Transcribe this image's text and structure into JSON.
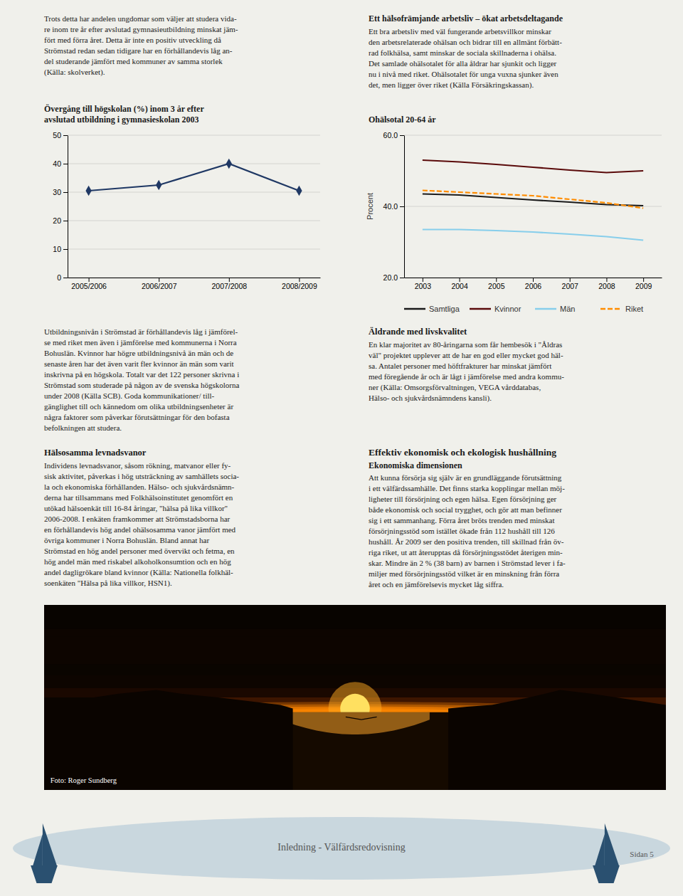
{
  "chart_data": [
    {
      "type": "line",
      "title": "Övergång till högskolan (%) inom 3 år efter\navslutad utbildning i gymnasieskolan 2003",
      "categories": [
        "2005/2006",
        "2006/2007",
        "2007/2008",
        "2008/2009"
      ],
      "values": [
        30.5,
        32.5,
        40.0,
        30.5
      ],
      "color": "#1f3864",
      "marker": "diamond",
      "ylim": [
        0,
        50
      ],
      "yticks": [
        0,
        10,
        20,
        30,
        40,
        50
      ],
      "grid": true
    },
    {
      "type": "line",
      "title": "Ohälsotal 20-64 år",
      "y_label": "Procent",
      "x": [
        2003,
        2004,
        2005,
        2006,
        2007,
        2008,
        2009
      ],
      "xlim": [
        2002.5,
        2009.5
      ],
      "xticks": [
        2003,
        2004,
        2005,
        2006,
        2007,
        2008,
        2009
      ],
      "series": [
        {
          "name": "Samtliga",
          "color": "#1a1a1a",
          "line_style": "solid",
          "values": [
            43.5,
            43.2,
            42.5,
            41.8,
            41.2,
            40.5,
            40.2
          ]
        },
        {
          "name": "Kvinnor",
          "color": "#5a0a0a",
          "line_style": "solid",
          "values": [
            53.0,
            52.5,
            51.8,
            51.0,
            50.2,
            49.5,
            50.0
          ]
        },
        {
          "name": "Män",
          "color": "#87ceeb",
          "line_style": "solid",
          "values": [
            33.5,
            33.5,
            33.2,
            32.8,
            32.2,
            31.5,
            30.5
          ]
        },
        {
          "name": "Riket",
          "color": "#ff8c00",
          "line_style": "dashed",
          "values": [
            44.5,
            44.0,
            43.5,
            43.0,
            42.0,
            41.0,
            39.5
          ]
        }
      ],
      "ylim": [
        20,
        60
      ],
      "yticks": [
        {
          "value": 20,
          "label": "20.0"
        },
        {
          "value": 40,
          "label": "40.0"
        },
        {
          "value": 60,
          "label": "60.0"
        }
      ],
      "grid": true,
      "legend": "bottom"
    }
  ],
  "text_blocks": [
    {
      "lines": [
        "Trots detta har andelen ungdomar som väljer att studera vida-",
        "re inom tre år efter avslutad gymnasieutbildning minskat jäm-",
        "fört med förra året. Detta är inte en positiv utveckling då",
        "Strömstad redan sedan tidigare har en förhållandevis låg an-",
        "del studerande jämfört med kommuner av samma storlek",
        "(Källa: skolverket)."
      ]
    },
    {
      "heading": "Ett hälsofrämjande arbetsliv – ökat arbetsdeltagande",
      "lines": [
        "Ett bra arbetsliv med väl fungerande arbetsvillkor minskar",
        "den arbetsrelaterade ohälsan och bidrar till en allmänt förbätt-",
        "rad folkhälsa, samt minskar de sociala skillnaderna i ohälsa.",
        "Det samlade ohälsotalet för alla åldrar har sjunkit och ligger",
        "nu i nivå med riket. Ohälsotalet för unga vuxna sjunker även",
        "det, men ligger över riket (Källa Försäkringskassan)."
      ]
    },
    {
      "lines": [
        "Utbildningsnivån i Strömstad är förhållandevis låg i jämförel-",
        "se med riket men även i jämförelse med kommunerna i Norra",
        "Bohuslän. Kvinnor har högre utbildningsnivå än män och de",
        "senaste åren har det även varit fler kvinnor än män som varit",
        "inskrivna på en högskola. Totalt var det 122 personer skrivna i",
        "Strömstad som studerade på någon av de svenska högskolorna",
        "under 2008 (Källa SCB). Goda kommunikationer/ till-",
        "gänglighet till och kännedom om olika utbildningsenheter är",
        "några faktorer som påverkar förutsättningar för den bofasta",
        "befolkningen att studera."
      ]
    },
    {
      "heading": "Äldrande med livskvalitet",
      "lines": [
        "En klar majoritet av 80-åringarna som får hembesök i \"Åldras",
        "väl\" projektet upplever att de har en god eller mycket god häl-",
        "sa. Antalet personer med höftfrakturer har minskat jämfört",
        "med föregående år och är lågt i jämförelse med andra kommu-",
        "ner (Källa: Omsorgsförvaltningen, VEGA vårddatabas,",
        "Hälso- och sjukvårdsnämndens kansli)."
      ]
    },
    {
      "heading": "Hälsosamma levnadsvanor",
      "lines": [
        "Individens levnadsvanor, såsom rökning, matvanor eller fy-",
        "sisk aktivitet, påverkas i hög utsträckning av samhällets socia-",
        "la och ekonomiska förhållanden. Hälso- och sjukvårdsnämn-",
        "derna har tillsammans med Folkhälsoinstitutet genomfört en",
        "utökad hälsoenkät till 16-84 åringar, \"hälsa på lika villkor\"",
        "2006-2008. I enkäten framkommer att Strömstadsborna har",
        "en förhållandevis hög andel ohälsosamma vanor jämfört med",
        "övriga kommuner i Norra Bohuslän. Bland annat har",
        "Strömstad en hög andel personer med övervikt och fetma, en",
        "hög andel män med riskabel alkoholkonsumtion och en hög",
        "andel dagligrökare bland kvinnor (Källa: Nationella folkhäl-",
        "soenkäten \"Hälsa på lika villkor, HSN1)."
      ]
    },
    {
      "heading": "Effektiv ekonomisk och ekologisk hushållning",
      "subheading": "Ekonomiska dimensionen",
      "lines": [
        "Att kunna försörja sig själv är en grundläggande förutsättning",
        "i ett välfärdssamhälle. Det finns starka kopplingar mellan möj-",
        "ligheter till försörjning och egen hälsa. Egen försörjning ger",
        "både ekonomisk och social trygghet, och gör att man befinner",
        "sig i ett sammanhang. Förra året bröts trenden med minskat",
        "försörjningsstöd som istället ökade från 112 hushåll till 126",
        "hushåll. År 2009 ser den positiva trenden, till skillnad från öv-",
        "riga riket, ut att återupptas då försörjningsstödet återigen min-",
        "skar. Mindre än 2 % (38 barn) av barnen i Strömstad lever i fa-",
        "miljer med försörjningsstöd vilket är en minskning från förra",
        "året och en jämförelsevis mycket låg siffra."
      ]
    }
  ],
  "photo_credit": "Foto: Roger Sundberg",
  "footer": {
    "text": "Inledning - Välfärdsredovisning",
    "page_label": "Sidan 5"
  }
}
